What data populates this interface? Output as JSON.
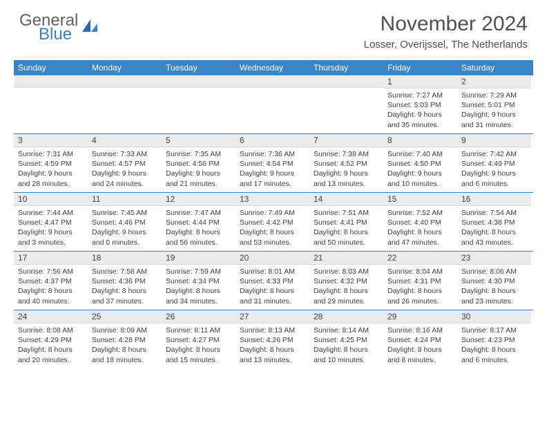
{
  "brand": {
    "line1": "General",
    "line2": "Blue"
  },
  "title": "November 2024",
  "location": "Losser, Overijssel, The Netherlands",
  "colors": {
    "header_bg": "#3a84c8",
    "rule": "#3a7fc4",
    "daybar_bg": "#ebebeb",
    "text": "#404040"
  },
  "day_names": [
    "Sunday",
    "Monday",
    "Tuesday",
    "Wednesday",
    "Thursday",
    "Friday",
    "Saturday"
  ],
  "weeks": [
    [
      {
        "n": "",
        "sr": "",
        "ss": "",
        "dl": ""
      },
      {
        "n": "",
        "sr": "",
        "ss": "",
        "dl": ""
      },
      {
        "n": "",
        "sr": "",
        "ss": "",
        "dl": ""
      },
      {
        "n": "",
        "sr": "",
        "ss": "",
        "dl": ""
      },
      {
        "n": "",
        "sr": "",
        "ss": "",
        "dl": ""
      },
      {
        "n": "1",
        "sr": "Sunrise: 7:27 AM",
        "ss": "Sunset: 5:03 PM",
        "dl": "Daylight: 9 hours and 35 minutes."
      },
      {
        "n": "2",
        "sr": "Sunrise: 7:29 AM",
        "ss": "Sunset: 5:01 PM",
        "dl": "Daylight: 9 hours and 31 minutes."
      }
    ],
    [
      {
        "n": "3",
        "sr": "Sunrise: 7:31 AM",
        "ss": "Sunset: 4:59 PM",
        "dl": "Daylight: 9 hours and 28 minutes."
      },
      {
        "n": "4",
        "sr": "Sunrise: 7:33 AM",
        "ss": "Sunset: 4:57 PM",
        "dl": "Daylight: 9 hours and 24 minutes."
      },
      {
        "n": "5",
        "sr": "Sunrise: 7:35 AM",
        "ss": "Sunset: 4:56 PM",
        "dl": "Daylight: 9 hours and 21 minutes."
      },
      {
        "n": "6",
        "sr": "Sunrise: 7:36 AM",
        "ss": "Sunset: 4:54 PM",
        "dl": "Daylight: 9 hours and 17 minutes."
      },
      {
        "n": "7",
        "sr": "Sunrise: 7:38 AM",
        "ss": "Sunset: 4:52 PM",
        "dl": "Daylight: 9 hours and 13 minutes."
      },
      {
        "n": "8",
        "sr": "Sunrise: 7:40 AM",
        "ss": "Sunset: 4:50 PM",
        "dl": "Daylight: 9 hours and 10 minutes."
      },
      {
        "n": "9",
        "sr": "Sunrise: 7:42 AM",
        "ss": "Sunset: 4:49 PM",
        "dl": "Daylight: 9 hours and 6 minutes."
      }
    ],
    [
      {
        "n": "10",
        "sr": "Sunrise: 7:44 AM",
        "ss": "Sunset: 4:47 PM",
        "dl": "Daylight: 9 hours and 3 minutes."
      },
      {
        "n": "11",
        "sr": "Sunrise: 7:45 AM",
        "ss": "Sunset: 4:46 PM",
        "dl": "Daylight: 9 hours and 0 minutes."
      },
      {
        "n": "12",
        "sr": "Sunrise: 7:47 AM",
        "ss": "Sunset: 4:44 PM",
        "dl": "Daylight: 8 hours and 56 minutes."
      },
      {
        "n": "13",
        "sr": "Sunrise: 7:49 AM",
        "ss": "Sunset: 4:42 PM",
        "dl": "Daylight: 8 hours and 53 minutes."
      },
      {
        "n": "14",
        "sr": "Sunrise: 7:51 AM",
        "ss": "Sunset: 4:41 PM",
        "dl": "Daylight: 8 hours and 50 minutes."
      },
      {
        "n": "15",
        "sr": "Sunrise: 7:52 AM",
        "ss": "Sunset: 4:40 PM",
        "dl": "Daylight: 8 hours and 47 minutes."
      },
      {
        "n": "16",
        "sr": "Sunrise: 7:54 AM",
        "ss": "Sunset: 4:38 PM",
        "dl": "Daylight: 8 hours and 43 minutes."
      }
    ],
    [
      {
        "n": "17",
        "sr": "Sunrise: 7:56 AM",
        "ss": "Sunset: 4:37 PM",
        "dl": "Daylight: 8 hours and 40 minutes."
      },
      {
        "n": "18",
        "sr": "Sunrise: 7:58 AM",
        "ss": "Sunset: 4:36 PM",
        "dl": "Daylight: 8 hours and 37 minutes."
      },
      {
        "n": "19",
        "sr": "Sunrise: 7:59 AM",
        "ss": "Sunset: 4:34 PM",
        "dl": "Daylight: 8 hours and 34 minutes."
      },
      {
        "n": "20",
        "sr": "Sunrise: 8:01 AM",
        "ss": "Sunset: 4:33 PM",
        "dl": "Daylight: 8 hours and 31 minutes."
      },
      {
        "n": "21",
        "sr": "Sunrise: 8:03 AM",
        "ss": "Sunset: 4:32 PM",
        "dl": "Daylight: 8 hours and 29 minutes."
      },
      {
        "n": "22",
        "sr": "Sunrise: 8:04 AM",
        "ss": "Sunset: 4:31 PM",
        "dl": "Daylight: 8 hours and 26 minutes."
      },
      {
        "n": "23",
        "sr": "Sunrise: 8:06 AM",
        "ss": "Sunset: 4:30 PM",
        "dl": "Daylight: 8 hours and 23 minutes."
      }
    ],
    [
      {
        "n": "24",
        "sr": "Sunrise: 8:08 AM",
        "ss": "Sunset: 4:29 PM",
        "dl": "Daylight: 8 hours and 20 minutes."
      },
      {
        "n": "25",
        "sr": "Sunrise: 8:09 AM",
        "ss": "Sunset: 4:28 PM",
        "dl": "Daylight: 8 hours and 18 minutes."
      },
      {
        "n": "26",
        "sr": "Sunrise: 8:11 AM",
        "ss": "Sunset: 4:27 PM",
        "dl": "Daylight: 8 hours and 15 minutes."
      },
      {
        "n": "27",
        "sr": "Sunrise: 8:13 AM",
        "ss": "Sunset: 4:26 PM",
        "dl": "Daylight: 8 hours and 13 minutes."
      },
      {
        "n": "28",
        "sr": "Sunrise: 8:14 AM",
        "ss": "Sunset: 4:25 PM",
        "dl": "Daylight: 8 hours and 10 minutes."
      },
      {
        "n": "29",
        "sr": "Sunrise: 8:16 AM",
        "ss": "Sunset: 4:24 PM",
        "dl": "Daylight: 8 hours and 8 minutes."
      },
      {
        "n": "30",
        "sr": "Sunrise: 8:17 AM",
        "ss": "Sunset: 4:23 PM",
        "dl": "Daylight: 8 hours and 6 minutes."
      }
    ]
  ]
}
